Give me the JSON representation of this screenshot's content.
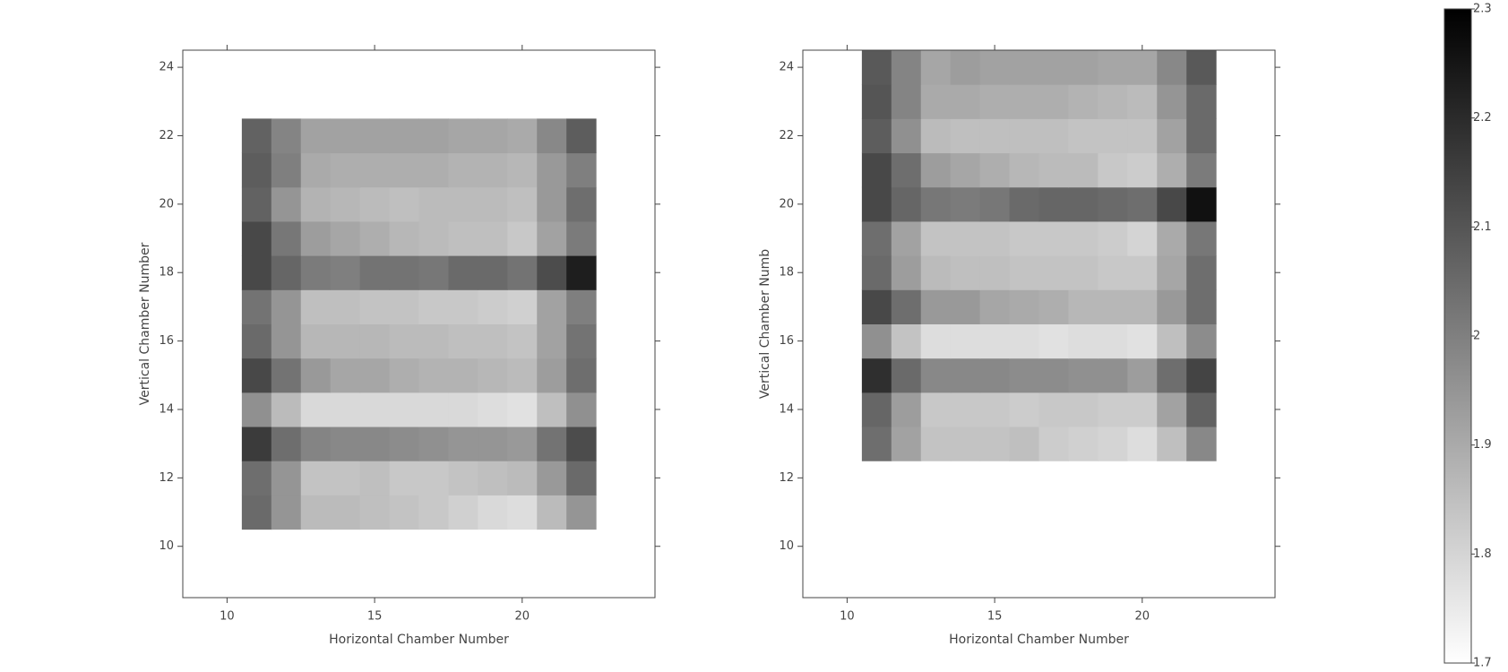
{
  "chart_data": [
    {
      "type": "heatmap",
      "xlabel": "Horizontal Chamber Number",
      "ylabel": "Vertical Chamber Number",
      "x": [
        11,
        12,
        13,
        14,
        15,
        16,
        17,
        18,
        19,
        20,
        21,
        22
      ],
      "y": [
        11,
        12,
        13,
        14,
        15,
        16,
        17,
        18,
        19,
        20,
        21,
        22
      ],
      "z": [
        [
          2.05,
          1.95,
          1.86,
          1.86,
          1.85,
          1.84,
          1.83,
          1.81,
          1.79,
          1.78,
          1.86,
          1.95
        ],
        [
          2.04,
          1.95,
          1.84,
          1.84,
          1.85,
          1.83,
          1.83,
          1.84,
          1.85,
          1.86,
          1.94,
          2.05
        ],
        [
          2.16,
          2.04,
          1.99,
          1.98,
          1.98,
          1.97,
          1.96,
          1.95,
          1.95,
          1.94,
          2.03,
          2.12
        ],
        [
          1.96,
          1.86,
          1.79,
          1.79,
          1.79,
          1.79,
          1.79,
          1.79,
          1.78,
          1.77,
          1.85,
          1.96
        ],
        [
          2.13,
          2.03,
          1.94,
          1.91,
          1.91,
          1.89,
          1.88,
          1.88,
          1.87,
          1.86,
          1.93,
          2.04
        ],
        [
          2.05,
          1.95,
          1.87,
          1.87,
          1.87,
          1.86,
          1.86,
          1.85,
          1.85,
          1.84,
          1.92,
          2.03
        ],
        [
          2.03,
          1.95,
          1.85,
          1.85,
          1.84,
          1.84,
          1.83,
          1.83,
          1.82,
          1.81,
          1.92,
          2.0
        ],
        [
          2.13,
          2.06,
          2.01,
          2.0,
          2.03,
          2.03,
          2.02,
          2.05,
          2.05,
          2.03,
          2.12,
          2.23
        ],
        [
          2.13,
          2.02,
          1.93,
          1.91,
          1.89,
          1.87,
          1.86,
          1.85,
          1.85,
          1.83,
          1.92,
          2.01
        ],
        [
          2.07,
          1.95,
          1.88,
          1.87,
          1.86,
          1.85,
          1.86,
          1.86,
          1.86,
          1.85,
          1.94,
          2.04
        ],
        [
          2.08,
          2.0,
          1.9,
          1.89,
          1.89,
          1.89,
          1.89,
          1.88,
          1.88,
          1.87,
          1.94,
          2.0
        ],
        [
          2.07,
          1.99,
          1.92,
          1.92,
          1.92,
          1.92,
          1.92,
          1.91,
          1.91,
          1.9,
          1.98,
          2.08
        ]
      ],
      "xlim": [
        8.5,
        24.5
      ],
      "ylim": [
        8.5,
        24.5
      ],
      "xticks": [
        10,
        15,
        20
      ],
      "yticks": [
        10,
        12,
        14,
        16,
        18,
        20,
        22,
        24
      ]
    },
    {
      "type": "heatmap",
      "xlabel": "Horizontal Chamber Number",
      "ylabel": "Vertical Chamber Numb",
      "x": [
        11,
        12,
        13,
        14,
        15,
        16,
        17,
        18,
        19,
        20,
        21,
        22
      ],
      "y": [
        13,
        14,
        15,
        16,
        17,
        18,
        19,
        20,
        21,
        22,
        23,
        24
      ],
      "z": [
        [
          2.04,
          1.92,
          1.84,
          1.84,
          1.84,
          1.85,
          1.82,
          1.81,
          1.8,
          1.78,
          1.85,
          1.98
        ],
        [
          2.06,
          1.93,
          1.83,
          1.83,
          1.83,
          1.82,
          1.83,
          1.83,
          1.82,
          1.82,
          1.92,
          2.07
        ],
        [
          2.19,
          2.05,
          1.98,
          1.98,
          1.98,
          1.97,
          1.97,
          1.96,
          1.96,
          1.93,
          2.04,
          2.14
        ],
        [
          1.96,
          1.84,
          1.78,
          1.78,
          1.78,
          1.78,
          1.77,
          1.78,
          1.78,
          1.77,
          1.85,
          1.97
        ],
        [
          2.13,
          2.04,
          1.94,
          1.94,
          1.91,
          1.9,
          1.89,
          1.87,
          1.87,
          1.87,
          1.94,
          2.04
        ],
        [
          2.05,
          1.93,
          1.86,
          1.85,
          1.85,
          1.84,
          1.84,
          1.84,
          1.83,
          1.83,
          1.91,
          2.04
        ],
        [
          2.04,
          1.92,
          1.84,
          1.84,
          1.84,
          1.83,
          1.83,
          1.83,
          1.82,
          1.8,
          1.9,
          2.02
        ],
        [
          2.13,
          2.06,
          2.02,
          2.01,
          2.02,
          2.05,
          2.06,
          2.06,
          2.05,
          2.04,
          2.13,
          2.26
        ],
        [
          2.13,
          2.04,
          1.93,
          1.91,
          1.89,
          1.87,
          1.86,
          1.86,
          1.83,
          1.82,
          1.89,
          2.01
        ],
        [
          2.08,
          1.96,
          1.86,
          1.85,
          1.85,
          1.85,
          1.85,
          1.84,
          1.84,
          1.84,
          1.92,
          2.05
        ],
        [
          2.1,
          1.99,
          1.9,
          1.9,
          1.89,
          1.89,
          1.89,
          1.88,
          1.87,
          1.86,
          1.95,
          2.05
        ],
        [
          2.09,
          1.99,
          1.91,
          1.93,
          1.92,
          1.92,
          1.92,
          1.92,
          1.91,
          1.91,
          1.98,
          2.09
        ]
      ],
      "xlim": [
        8.5,
        24.5
      ],
      "ylim": [
        8.5,
        24.5
      ],
      "xticks": [
        10,
        15,
        20
      ],
      "yticks": [
        10,
        12,
        14,
        16,
        18,
        20,
        22,
        24
      ]
    },
    {
      "type": "colorbar",
      "zlim": [
        1.7,
        2.3
      ],
      "ticks": [
        1.7,
        1.8,
        1.9,
        2,
        2.1,
        2.2,
        2.3
      ],
      "colorscale": [
        "#ffffff",
        "#000000"
      ]
    }
  ]
}
